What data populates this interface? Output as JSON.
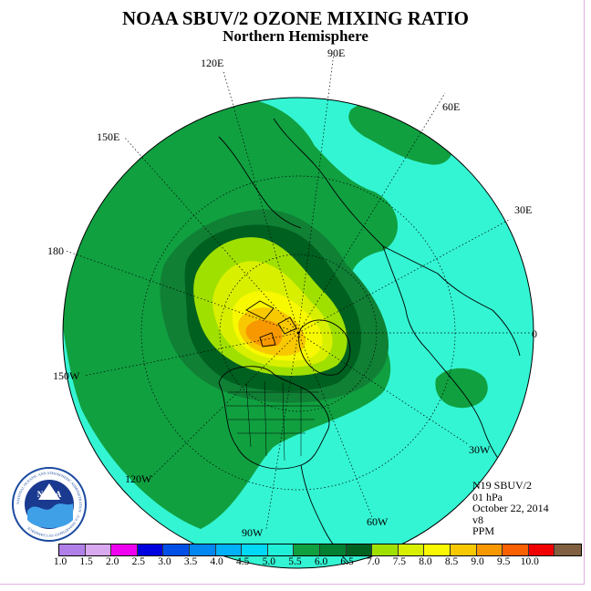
{
  "title": "NOAA SBUV/2 OZONE MIXING RATIO",
  "subtitle": "Northern Hemisphere",
  "longitude_labels": {
    "lon_90e": "90E",
    "lon_60e": "60E",
    "lon_30e": "30E",
    "lon_0": "0",
    "lon_30w": "30W",
    "lon_60w": "60W",
    "lon_90w": "90W",
    "lon_120w": "120W",
    "lon_150w": "150W",
    "lon_180": "180",
    "lon_150e": "150E",
    "lon_120e": "120E"
  },
  "info": {
    "instrument": "N19 SBUV/2",
    "level": "01 hPa",
    "date": "October 22, 2014",
    "version": "v8",
    "units": "PPM"
  },
  "colorbar": {
    "ticks": [
      "1.0",
      "1.5",
      "2.0",
      "2.5",
      "3.0",
      "3.5",
      "4.0",
      "4.5",
      "5.0",
      "5.5",
      "6.0",
      "6.5",
      "7.0",
      "7.5",
      "8.0",
      "8.5",
      "9.0",
      "9.5",
      "10.0"
    ],
    "colors": [
      "#b080e8",
      "#d8a8f0",
      "#f000f0",
      "#0000e0",
      "#0050e8",
      "#0088f0",
      "#00b0f8",
      "#00d8f8",
      "#20f0d8",
      "#10a040",
      "#008030",
      "#006020",
      "#a0e000",
      "#d8f000",
      "#f8f800",
      "#f8c800",
      "#f89800",
      "#f86000",
      "#f00000",
      "#806040"
    ]
  },
  "map_colors": {
    "level_5_0": "#33f5d3",
    "level_5_5": "#10a040",
    "level_6_0": "#108035",
    "level_6_5": "#006020",
    "level_7_0": "#a0e000",
    "level_7_5": "#d8f000",
    "level_8_0": "#f8f800",
    "level_8_5": "#f8c800",
    "level_9_0": "#f89800"
  },
  "logo": {
    "text": "NOAA",
    "ring_text": "NATIONAL OCEANIC AND ATMOSPHERIC ADMINISTRATION · U.S. DEPARTMENT OF COMMERCE"
  }
}
